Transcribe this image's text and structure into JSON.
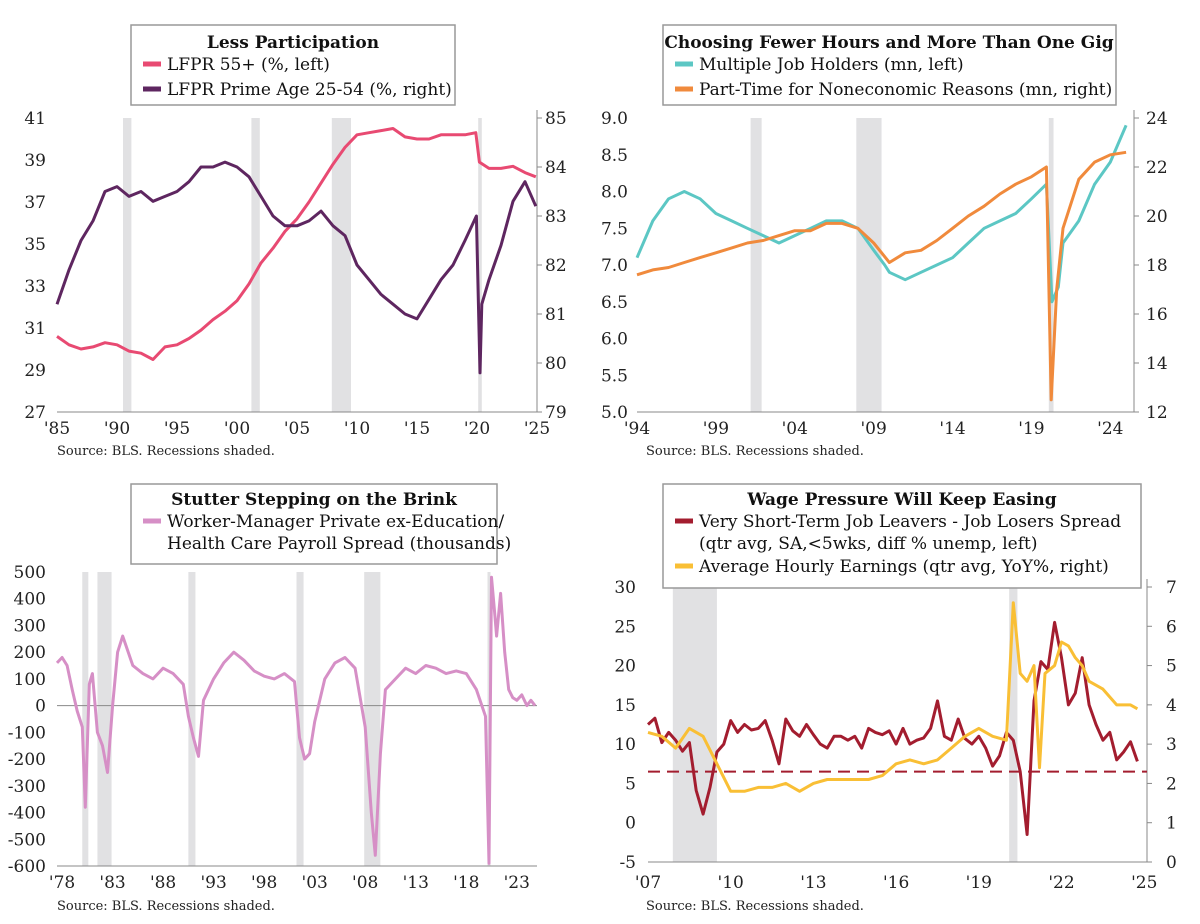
{
  "chart_data": [
    {
      "type": "line",
      "title": "Less Participation",
      "source": "Source: BLS. Recessions shaded.",
      "x_ticks": [
        "'85",
        "'90",
        "'95",
        "'00",
        "'05",
        "'10",
        "'15",
        "'20",
        "'25"
      ],
      "x_range": [
        1985,
        2025
      ],
      "y_left": {
        "ticks": [
          "27",
          "29",
          "31",
          "33",
          "35",
          "37",
          "39",
          "41"
        ],
        "range": [
          27,
          41
        ]
      },
      "y_right": {
        "ticks": [
          "79",
          "80",
          "81",
          "82",
          "83",
          "84",
          "85"
        ],
        "range": [
          79,
          85
        ]
      },
      "recessions": [
        [
          1990.5,
          1991.2
        ],
        [
          2001.2,
          2001.9
        ],
        [
          2007.9,
          2009.5
        ],
        [
          2020.1,
          2020.4
        ]
      ],
      "series": [
        {
          "name": "LFPR 55+ (%, left)",
          "axis": "left",
          "color": "#e84a72",
          "x": [
            1985,
            1986,
            1987,
            1988,
            1989,
            1990,
            1991,
            1992,
            1993,
            1994,
            1995,
            1996,
            1997,
            1998,
            1999,
            2000,
            2001,
            2002,
            2003,
            2004,
            2005,
            2006,
            2007,
            2008,
            2009,
            2010,
            2011,
            2012,
            2013,
            2014,
            2015,
            2016,
            2017,
            2018,
            2019,
            2019.9,
            2020.2,
            2021,
            2022,
            2023,
            2024,
            2024.9
          ],
          "y": [
            30.6,
            30.2,
            30.0,
            30.1,
            30.3,
            30.2,
            29.9,
            29.8,
            29.5,
            30.1,
            30.2,
            30.5,
            30.9,
            31.4,
            31.8,
            32.3,
            33.1,
            34.1,
            34.8,
            35.6,
            36.2,
            37.0,
            37.9,
            38.8,
            39.6,
            40.2,
            40.3,
            40.4,
            40.5,
            40.1,
            40.0,
            40.0,
            40.2,
            40.2,
            40.2,
            40.3,
            38.9,
            38.6,
            38.6,
            38.7,
            38.4,
            38.2
          ]
        },
        {
          "name": "LFPR Prime Age 25-54 (%, right)",
          "axis": "right",
          "color": "#5e2660",
          "x": [
            1985,
            1986,
            1987,
            1988,
            1989,
            1990,
            1991,
            1992,
            1993,
            1994,
            1995,
            1996,
            1997,
            1998,
            1999,
            2000,
            2001,
            2002,
            2003,
            2004,
            2005,
            2006,
            2007,
            2008,
            2009,
            2010,
            2011,
            2012,
            2013,
            2014,
            2015,
            2016,
            2017,
            2018,
            2019,
            2019.95,
            2020.25,
            2020.4,
            2021,
            2022,
            2023,
            2024,
            2024.9
          ],
          "y": [
            81.2,
            81.9,
            82.5,
            82.9,
            83.5,
            83.6,
            83.4,
            83.5,
            83.3,
            83.4,
            83.5,
            83.7,
            84.0,
            84.0,
            84.1,
            84.0,
            83.8,
            83.4,
            83.0,
            82.8,
            82.8,
            82.9,
            83.1,
            82.8,
            82.6,
            82.0,
            81.7,
            81.4,
            81.2,
            81.0,
            80.9,
            81.3,
            81.7,
            82.0,
            82.5,
            83.0,
            79.8,
            81.2,
            81.7,
            82.4,
            83.3,
            83.7,
            83.2
          ]
        }
      ]
    },
    {
      "type": "line",
      "title": "Choosing Fewer Hours and More Than One Gig",
      "source": "Source: BLS. Recessions shaded.",
      "x_ticks": [
        "'94",
        "'99",
        "'04",
        "'09",
        "'14",
        "'19",
        "'24"
      ],
      "x_range": [
        1994,
        2025.5
      ],
      "y_left": {
        "ticks": [
          "5.0",
          "5.5",
          "6.0",
          "6.5",
          "7.0",
          "7.5",
          "8.0",
          "8.5",
          "9.0"
        ],
        "range": [
          5,
          9
        ]
      },
      "y_right": {
        "ticks": [
          "12",
          "14",
          "16",
          "18",
          "20",
          "22",
          "24"
        ],
        "range": [
          12,
          24
        ]
      },
      "recessions": [
        [
          2001.2,
          2001.9
        ],
        [
          2007.9,
          2009.5
        ],
        [
          2020.1,
          2020.4
        ]
      ],
      "series": [
        {
          "name": "Multiple Job Holders (mn, left)",
          "axis": "left",
          "color": "#5cc7c4",
          "x": [
            1994,
            1995,
            1996,
            1997,
            1998,
            1999,
            2000,
            2001,
            2002,
            2003,
            2004,
            2005,
            2006,
            2007,
            2008,
            2009,
            2009.7,
            2010,
            2011,
            2012,
            2013,
            2014,
            2015,
            2016,
            2017,
            2018,
            2019,
            2019.95,
            2020.3,
            2020.7,
            2021,
            2022,
            2023,
            2024,
            2025
          ],
          "y": [
            7.1,
            7.6,
            7.9,
            8.0,
            7.9,
            7.7,
            7.6,
            7.5,
            7.4,
            7.3,
            7.4,
            7.5,
            7.6,
            7.6,
            7.5,
            7.2,
            7.0,
            6.9,
            6.8,
            6.9,
            7.0,
            7.1,
            7.3,
            7.5,
            7.6,
            7.7,
            7.9,
            8.1,
            6.5,
            6.7,
            7.3,
            7.6,
            8.1,
            8.4,
            8.9
          ]
        },
        {
          "name": "Part-Time for Noneconomic Reasons (mn, right)",
          "axis": "right",
          "color": "#f08a3c",
          "x": [
            1994,
            1995,
            1996,
            1997,
            1998,
            1999,
            2000,
            2001,
            2002,
            2003,
            2004,
            2005,
            2006,
            2007,
            2008,
            2009,
            2010,
            2011,
            2012,
            2013,
            2014,
            2015,
            2016,
            2017,
            2018,
            2019,
            2019.95,
            2020.25,
            2020.6,
            2021,
            2022,
            2023,
            2024,
            2025
          ],
          "y": [
            17.6,
            17.8,
            17.9,
            18.1,
            18.3,
            18.5,
            18.7,
            18.9,
            19.0,
            19.2,
            19.4,
            19.4,
            19.7,
            19.7,
            19.5,
            18.9,
            18.1,
            18.5,
            18.6,
            19.0,
            19.5,
            20.0,
            20.4,
            20.9,
            21.3,
            21.6,
            22.0,
            12.5,
            17.0,
            19.5,
            21.5,
            22.2,
            22.5,
            22.6
          ]
        }
      ]
    },
    {
      "type": "line",
      "title": "Stutter Stepping on the Brink",
      "source": "Source: BLS. Recessions shaded.",
      "x_ticks": [
        "'78",
        "'83",
        "'88",
        "'93",
        "'98",
        "'03",
        "'08",
        "'13",
        "'18",
        "'23"
      ],
      "x_range": [
        1977.5,
        2025
      ],
      "y_left": {
        "ticks": [
          "-600",
          "-500",
          "-400",
          "-300",
          "-200",
          "-100",
          "0",
          "100",
          "200",
          "300",
          "400",
          "500"
        ],
        "range": [
          -600,
          500
        ]
      },
      "recessions": [
        [
          1980.0,
          1980.6
        ],
        [
          1981.5,
          1982.9
        ],
        [
          1990.5,
          1991.2
        ],
        [
          2001.2,
          2001.9
        ],
        [
          2007.9,
          2009.5
        ],
        [
          2020.1,
          2020.4
        ]
      ],
      "series": [
        {
          "name": "Worker-Manager Private ex-Education/ Health Care Payroll Spread (thousands)",
          "axis": "left",
          "color": "#d68fc6",
          "x": [
            1977.5,
            1978,
            1978.5,
            1979,
            1979.5,
            1980,
            1980.3,
            1980.7,
            1981,
            1981.5,
            1982,
            1982.5,
            1983,
            1983.5,
            1984,
            1985,
            1986,
            1987,
            1988,
            1989,
            1990,
            1990.5,
            1991,
            1991.5,
            1992,
            1993,
            1994,
            1995,
            1996,
            1997,
            1998,
            1999,
            2000,
            2001,
            2001.5,
            2002,
            2002.5,
            2003,
            2004,
            2005,
            2006,
            2007,
            2008,
            2008.6,
            2009,
            2009.5,
            2010,
            2011,
            2012,
            2013,
            2014,
            2015,
            2016,
            2017,
            2018,
            2019,
            2019.9,
            2020.25,
            2020.5,
            2020.8,
            2021,
            2021.4,
            2021.8,
            2022.2,
            2022.6,
            2023,
            2023.5,
            2024,
            2024.4,
            2024.8
          ],
          "y": [
            160,
            180,
            150,
            60,
            -20,
            -80,
            -380,
            80,
            120,
            -100,
            -150,
            -250,
            0,
            200,
            260,
            150,
            120,
            100,
            140,
            120,
            80,
            -40,
            -120,
            -190,
            20,
            100,
            160,
            200,
            170,
            130,
            110,
            100,
            120,
            90,
            -120,
            -200,
            -180,
            -60,
            100,
            160,
            180,
            140,
            -80,
            -400,
            -560,
            -180,
            60,
            100,
            140,
            120,
            150,
            140,
            120,
            130,
            120,
            60,
            -40,
            -590,
            480,
            350,
            260,
            420,
            200,
            60,
            30,
            20,
            40,
            0,
            20,
            0
          ]
        }
      ]
    },
    {
      "type": "line",
      "title": "Wage Pressure Will Keep Easing",
      "source": "Source: BLS. Recessions shaded.",
      "x_ticks": [
        "'07",
        "'10",
        "'13",
        "'16",
        "'19",
        "'22",
        "'25"
      ],
      "x_range": [
        2007,
        2025.1
      ],
      "y_left": {
        "ticks": [
          "-5",
          "0",
          "5",
          "10",
          "15",
          "20",
          "25",
          "30"
        ],
        "range": [
          -5,
          30
        ]
      },
      "y_right": {
        "ticks": [
          "0",
          "1",
          "2",
          "3",
          "4",
          "5",
          "6",
          "7"
        ],
        "range": [
          0,
          7
        ]
      },
      "recessions": [
        [
          2007.9,
          2009.5
        ],
        [
          2020.1,
          2020.4
        ]
      ],
      "reference_line": {
        "axis": "left",
        "value": 6.5,
        "color": "#a31d2f"
      },
      "series": [
        {
          "name": "Very Short-Term Job Leavers - Job Losers  Spread (qtr avg, SA,<5wks, diff % unemp, left)",
          "axis": "left",
          "color": "#a31d2f",
          "x": [
            2007.0,
            2007.25,
            2007.5,
            2007.75,
            2008.0,
            2008.25,
            2008.5,
            2008.75,
            2009.0,
            2009.25,
            2009.5,
            2009.75,
            2010.0,
            2010.25,
            2010.5,
            2010.75,
            2011.0,
            2011.25,
            2011.5,
            2011.75,
            2012.0,
            2012.25,
            2012.5,
            2012.75,
            2013.0,
            2013.25,
            2013.5,
            2013.75,
            2014.0,
            2014.25,
            2014.5,
            2014.75,
            2015.0,
            2015.25,
            2015.5,
            2015.75,
            2016.0,
            2016.25,
            2016.5,
            2016.75,
            2017.0,
            2017.25,
            2017.5,
            2017.75,
            2018.0,
            2018.25,
            2018.5,
            2018.75,
            2019.0,
            2019.25,
            2019.5,
            2019.75,
            2020.0,
            2020.25,
            2020.5,
            2020.75,
            2021.0,
            2021.25,
            2021.5,
            2021.75,
            2022.0,
            2022.25,
            2022.5,
            2022.75,
            2023.0,
            2023.25,
            2023.5,
            2023.75,
            2024.0,
            2024.25,
            2024.5,
            2024.75
          ],
          "y": [
            12.5,
            13.3,
            10.2,
            11.5,
            10.5,
            9.1,
            10.2,
            4.1,
            1.1,
            4.5,
            9.0,
            10.0,
            13.0,
            11.5,
            12.5,
            11.8,
            12.0,
            13.0,
            10.5,
            7.5,
            13.2,
            11.7,
            11.0,
            12.5,
            11.2,
            10.0,
            9.5,
            11.0,
            11.0,
            10.5,
            11.0,
            9.5,
            12.0,
            11.5,
            11.2,
            11.7,
            10.0,
            12.0,
            10.0,
            10.5,
            10.8,
            12.0,
            15.5,
            11.0,
            10.5,
            13.2,
            10.7,
            10.0,
            11.0,
            9.5,
            7.2,
            8.5,
            11.5,
            10.5,
            6.5,
            -1.5,
            15.5,
            20.5,
            19.5,
            25.5,
            21.0,
            15.0,
            16.5,
            21.0,
            15.0,
            12.5,
            10.5,
            11.5,
            8.0,
            9.0,
            10.3,
            7.8
          ]
        },
        {
          "name": "Average Hourly Earnings (qtr avg, YoY%, right)",
          "axis": "right",
          "color": "#f9bf35",
          "x": [
            2007.0,
            2007.5,
            2008.0,
            2008.5,
            2009.0,
            2009.5,
            2010.0,
            2010.5,
            2011.0,
            2011.5,
            2012.0,
            2012.5,
            2013.0,
            2013.5,
            2014.0,
            2014.5,
            2015.0,
            2015.5,
            2016.0,
            2016.5,
            2017.0,
            2017.5,
            2018.0,
            2018.5,
            2019.0,
            2019.5,
            2020.0,
            2020.25,
            2020.5,
            2020.75,
            2021.0,
            2021.2,
            2021.4,
            2021.75,
            2022.0,
            2022.25,
            2022.5,
            2022.75,
            2023.0,
            2023.5,
            2024.0,
            2024.5,
            2024.75
          ],
          "y": [
            3.3,
            3.2,
            2.9,
            3.4,
            3.2,
            2.5,
            1.8,
            1.8,
            1.9,
            1.9,
            2.0,
            1.8,
            2.0,
            2.1,
            2.1,
            2.1,
            2.1,
            2.2,
            2.5,
            2.6,
            2.5,
            2.6,
            2.9,
            3.2,
            3.4,
            3.2,
            3.1,
            6.6,
            4.8,
            4.6,
            5.0,
            2.4,
            4.8,
            5.0,
            5.6,
            5.5,
            5.2,
            5.0,
            4.6,
            4.4,
            4.0,
            4.0,
            3.9
          ]
        }
      ]
    }
  ],
  "panels": [
    {
      "legend": {
        "title": "Less Participation",
        "entries": [
          {
            "label": "LFPR 55+ (%, left)",
            "color": "#e84a72"
          },
          {
            "label": "LFPR Prime Age 25-54 (%, right)",
            "color": "#5e2660"
          }
        ]
      }
    },
    {
      "legend": {
        "title": "Choosing Fewer Hours and More Than One Gig",
        "entries": [
          {
            "label": "Multiple Job Holders (mn, left)",
            "color": "#5cc7c4"
          },
          {
            "label": "Part-Time for Noneconomic Reasons (mn, right)",
            "color": "#f08a3c"
          }
        ]
      }
    },
    {
      "legend": {
        "title": "Stutter Stepping on the Brink",
        "entries": [
          {
            "label": "Worker-Manager Private ex-Education/",
            "label2": "Health Care Payroll Spread (thousands)",
            "color": "#d68fc6"
          }
        ]
      }
    },
    {
      "legend": {
        "title": "Wage Pressure Will Keep Easing",
        "entries": [
          {
            "label": "Very Short-Term Job Leavers - Job Losers  Spread",
            "label2": "(qtr avg, SA,<5wks, diff % unemp, left)",
            "color": "#a31d2f"
          },
          {
            "label": "Average Hourly Earnings (qtr avg, YoY%, right)",
            "color": "#f9bf35"
          }
        ]
      }
    }
  ]
}
